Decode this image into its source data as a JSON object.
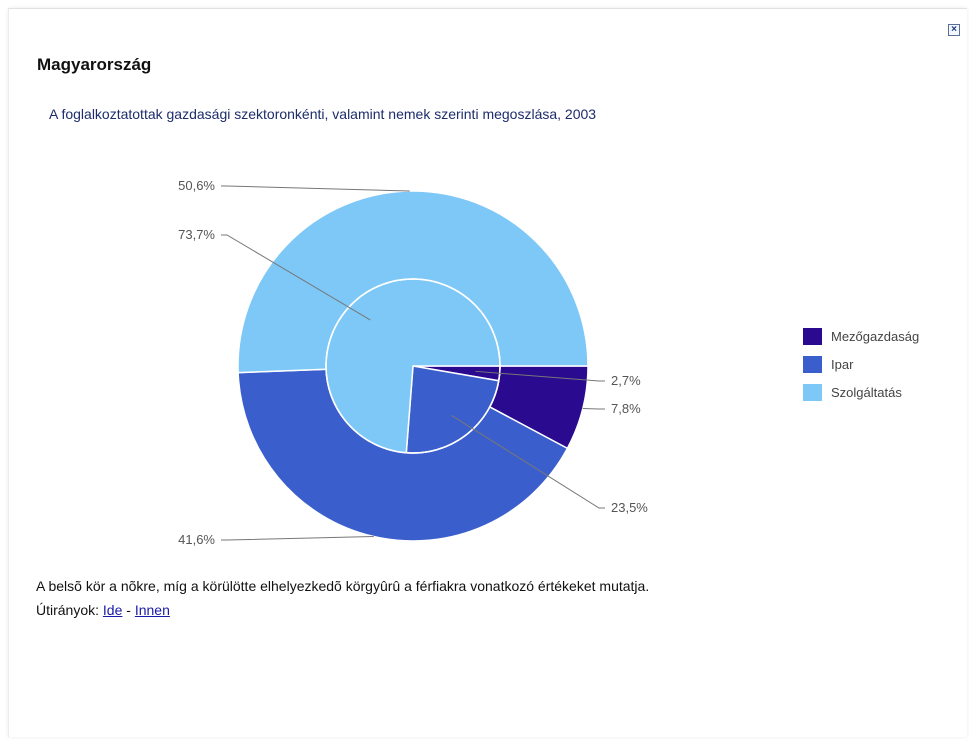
{
  "window": {
    "close_label": "×"
  },
  "header": {
    "title": "Magyarország",
    "subtitle": "A foglalkoztatottak gazdasági szektoronkénti, valamint nemek szerinti megoszlása, 2003"
  },
  "chart_data": {
    "type": "pie",
    "variant": "nested-donut",
    "legend_position": "right",
    "categories": [
      "Mezőgazdaság",
      "Ipar",
      "Szolgáltatás"
    ],
    "colors": [
      "#2a0a8f",
      "#3a5fcd",
      "#7ec8f8"
    ],
    "series": [
      {
        "ring": "inner",
        "values": [
          2.7,
          23.5,
          73.7
        ],
        "labels": [
          "2,7%",
          "23,5%",
          "73,7%"
        ]
      },
      {
        "ring": "outer",
        "values": [
          7.8,
          41.6,
          50.6
        ],
        "labels": [
          "7,8%",
          "41,6%",
          "50,6%"
        ]
      }
    ]
  },
  "footer": {
    "note": "A belsõ kör a nõkre, míg a körülötte elhelyezkedõ körgyûrû a férfiakra vonatkozó értékeket mutatja.",
    "routes_label": "Útirányok:",
    "link_to": "Ide",
    "separator": " - ",
    "link_from": "Innen"
  }
}
